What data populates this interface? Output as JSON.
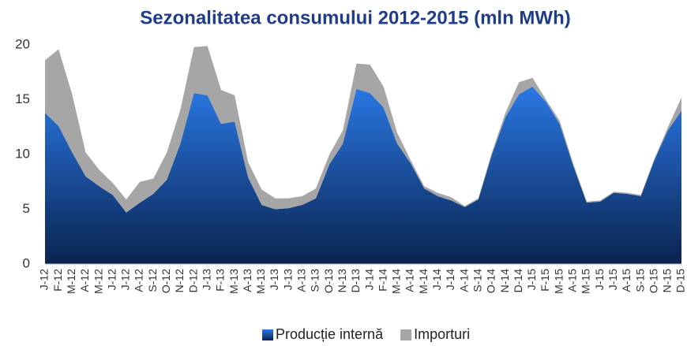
{
  "chart_data": {
    "type": "stacked_area",
    "title": "Sezonalitatea consumului 2012-2015 (mln MWh)",
    "categories": [
      "J-12",
      "F-12",
      "M-12",
      "A-12",
      "M-12",
      "J-12",
      "J-12",
      "A-12",
      "S-12",
      "O-12",
      "N-12",
      "D-12",
      "J-13",
      "F-13",
      "M-13",
      "A-13",
      "M-13",
      "J-13",
      "J-13",
      "A-13",
      "S-13",
      "O-13",
      "N-13",
      "D-13",
      "J-14",
      "F-14",
      "M-14",
      "A-14",
      "M-14",
      "J-14",
      "J-14",
      "A-14",
      "S-14",
      "O-14",
      "N-14",
      "D-14",
      "J-15",
      "F-15",
      "M-15",
      "A-15",
      "M-15",
      "J-15",
      "J-15",
      "A-15",
      "S-15",
      "O-15",
      "N-15",
      "D-15"
    ],
    "series": [
      {
        "name": "Producție internă",
        "color": "#2a78e4",
        "values": [
          13.8,
          12.6,
          10.2,
          8.0,
          7.1,
          6.3,
          4.7,
          5.6,
          6.4,
          7.7,
          11.0,
          15.6,
          15.4,
          12.8,
          13.0,
          7.9,
          5.4,
          5.0,
          5.1,
          5.4,
          6.0,
          9.1,
          11.0,
          16.0,
          15.6,
          14.3,
          11.0,
          9.2,
          6.9,
          6.2,
          5.8,
          5.2,
          5.9,
          10.0,
          13.4,
          15.5,
          16.2,
          14.8,
          12.8,
          9.0,
          5.6,
          5.7,
          6.5,
          6.4,
          6.2,
          9.5,
          12.2,
          14.0
        ]
      },
      {
        "name": "Importuri",
        "color": "#a6a6a6",
        "values": [
          4.8,
          7.0,
          5.3,
          2.2,
          1.5,
          1.1,
          1.2,
          1.9,
          1.4,
          2.5,
          3.1,
          4.2,
          4.5,
          3.1,
          2.4,
          1.4,
          1.4,
          1.0,
          0.9,
          0.8,
          0.9,
          0.9,
          1.2,
          2.3,
          2.6,
          1.9,
          1.0,
          0.3,
          0.2,
          0.3,
          0.3,
          0.1,
          0.1,
          0.2,
          0.4,
          1.1,
          0.8,
          0.2,
          0.3,
          0.2,
          0.1,
          0.1,
          0.1,
          0.1,
          0.1,
          0.1,
          0.3,
          1.2
        ]
      }
    ],
    "ylim": [
      0,
      20
    ],
    "yticks": [
      0,
      5,
      10,
      15,
      20
    ],
    "grid": false,
    "legend": "bottom"
  }
}
